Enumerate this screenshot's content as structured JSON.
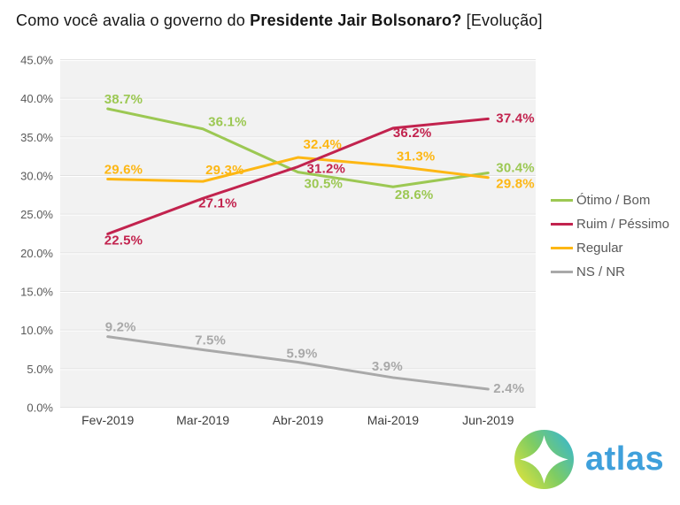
{
  "title": {
    "prefix": "Como você avalia o governo do ",
    "bold": "Presidente Jair Bolsonaro?",
    "suffix": " [Evolução]"
  },
  "chart_data": {
    "type": "line",
    "title": "Como você avalia o governo do Presidente Jair Bolsonaro? [Evolução]",
    "categories": [
      "Fev-2019",
      "Mar-2019",
      "Abr-2019",
      "Mai-2019",
      "Jun-2019"
    ],
    "series": [
      {
        "name": "Ótimo / Bom",
        "color": "#9CC853",
        "values": [
          38.7,
          36.1,
          30.5,
          28.6,
          30.4
        ]
      },
      {
        "name": "Ruim / Péssimo",
        "color": "#C2234E",
        "values": [
          22.5,
          27.1,
          31.2,
          36.2,
          37.4
        ]
      },
      {
        "name": "Regular",
        "color": "#FDB714",
        "values": [
          29.6,
          29.3,
          32.4,
          31.3,
          29.8
        ]
      },
      {
        "name": "NS / NR",
        "color": "#A9A9A9",
        "values": [
          9.2,
          7.5,
          5.9,
          3.9,
          2.4
        ]
      }
    ],
    "xlabel": "",
    "ylabel": "",
    "ylim": [
      0,
      45
    ],
    "y_tick_step": 5,
    "y_tick_labels": [
      "0.0%",
      "5.0%",
      "10.0%",
      "15.0%",
      "20.0%",
      "25.0%",
      "30.0%",
      "35.0%",
      "40.0%",
      "45.0%"
    ],
    "label_format": "one_decimal_percent",
    "grid": "horizontal",
    "plot_background": "#F2F2F2",
    "gridline_color": "#FFFFFF",
    "legend_position": "right"
  },
  "logo": {
    "text": "atlas",
    "text_color": "#3FA0DB",
    "gradient": [
      "#E0E33C",
      "#7ECC63",
      "#38B7CE"
    ]
  }
}
